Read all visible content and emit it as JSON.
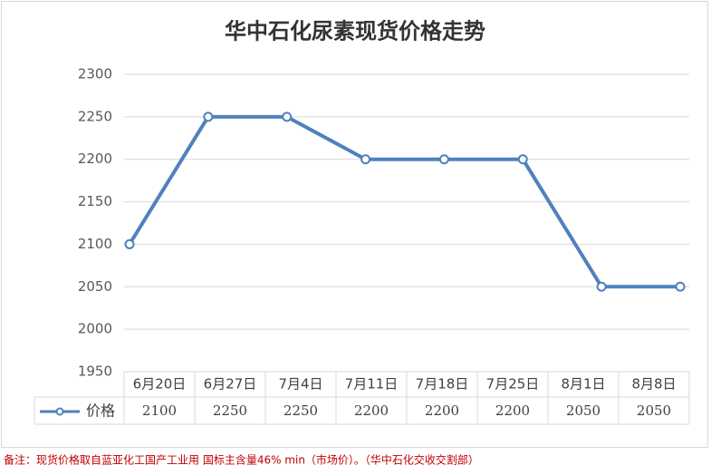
{
  "chart_data": {
    "type": "line",
    "title": "华中石化尿素现货价格走势",
    "categories": [
      "6月20日",
      "6月27日",
      "7月4日",
      "7月11日",
      "7月18日",
      "7月25日",
      "8月1日",
      "8月8日"
    ],
    "series": [
      {
        "name": "价格",
        "color": "#4f81bd",
        "values": [
          2100,
          2250,
          2250,
          2200,
          2200,
          2200,
          2050,
          2050
        ]
      }
    ],
    "ylim": [
      1950,
      2300
    ],
    "yticks": [
      1950,
      2000,
      2050,
      2100,
      2150,
      2200,
      2250,
      2300
    ],
    "grid": true,
    "note": "备注：现货价格取自蓝亚化工国产工业用 国标主含量46% min（市场价）。（华中石化交收交割部）"
  }
}
